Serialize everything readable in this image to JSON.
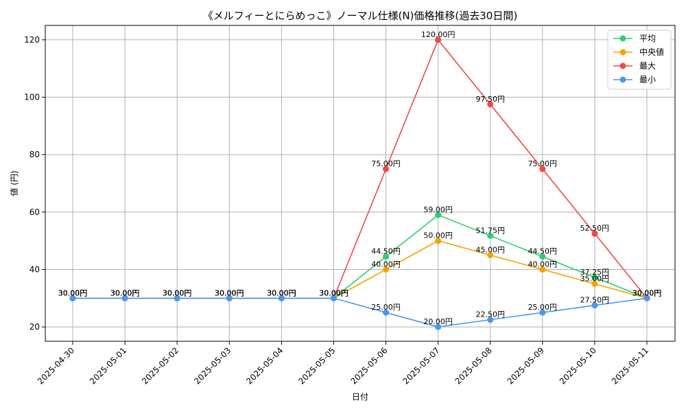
{
  "chart_data": {
    "type": "line",
    "title": "《メルフィーとにらめっこ》ノーマル仕様(N)価格推移(過去30日間)",
    "xlabel": "日付",
    "ylabel": "値 (円)",
    "ylim": [
      15,
      125
    ],
    "yticks": [
      20,
      40,
      60,
      80,
      100,
      120
    ],
    "grid": true,
    "legend_position": "top-right",
    "label_suffix": "円",
    "categories": [
      "2025-04-30",
      "2025-05-01",
      "2025-05-02",
      "2025-05-03",
      "2025-05-04",
      "2025-05-05",
      "2025-05-06",
      "2025-05-07",
      "2025-05-08",
      "2025-05-09",
      "2025-05-10",
      "2025-05-11"
    ],
    "series": [
      {
        "name": "平均",
        "color": "#2ecc71",
        "values": [
          30,
          30,
          30,
          30,
          30,
          30,
          44.5,
          59,
          51.75,
          44.5,
          37.25,
          30
        ]
      },
      {
        "name": "中央値",
        "color": "#f5a300",
        "values": [
          30,
          30,
          30,
          30,
          30,
          30,
          40,
          50,
          45,
          40,
          35,
          30
        ]
      },
      {
        "name": "最大",
        "color": "#f04848",
        "values": [
          30,
          30,
          30,
          30,
          30,
          30,
          75,
          120,
          97.5,
          75,
          52.5,
          30
        ]
      },
      {
        "name": "最小",
        "color": "#4b97f0",
        "values": [
          30,
          30,
          30,
          30,
          30,
          30,
          25,
          20,
          22.5,
          25,
          27.5,
          30
        ]
      }
    ]
  }
}
